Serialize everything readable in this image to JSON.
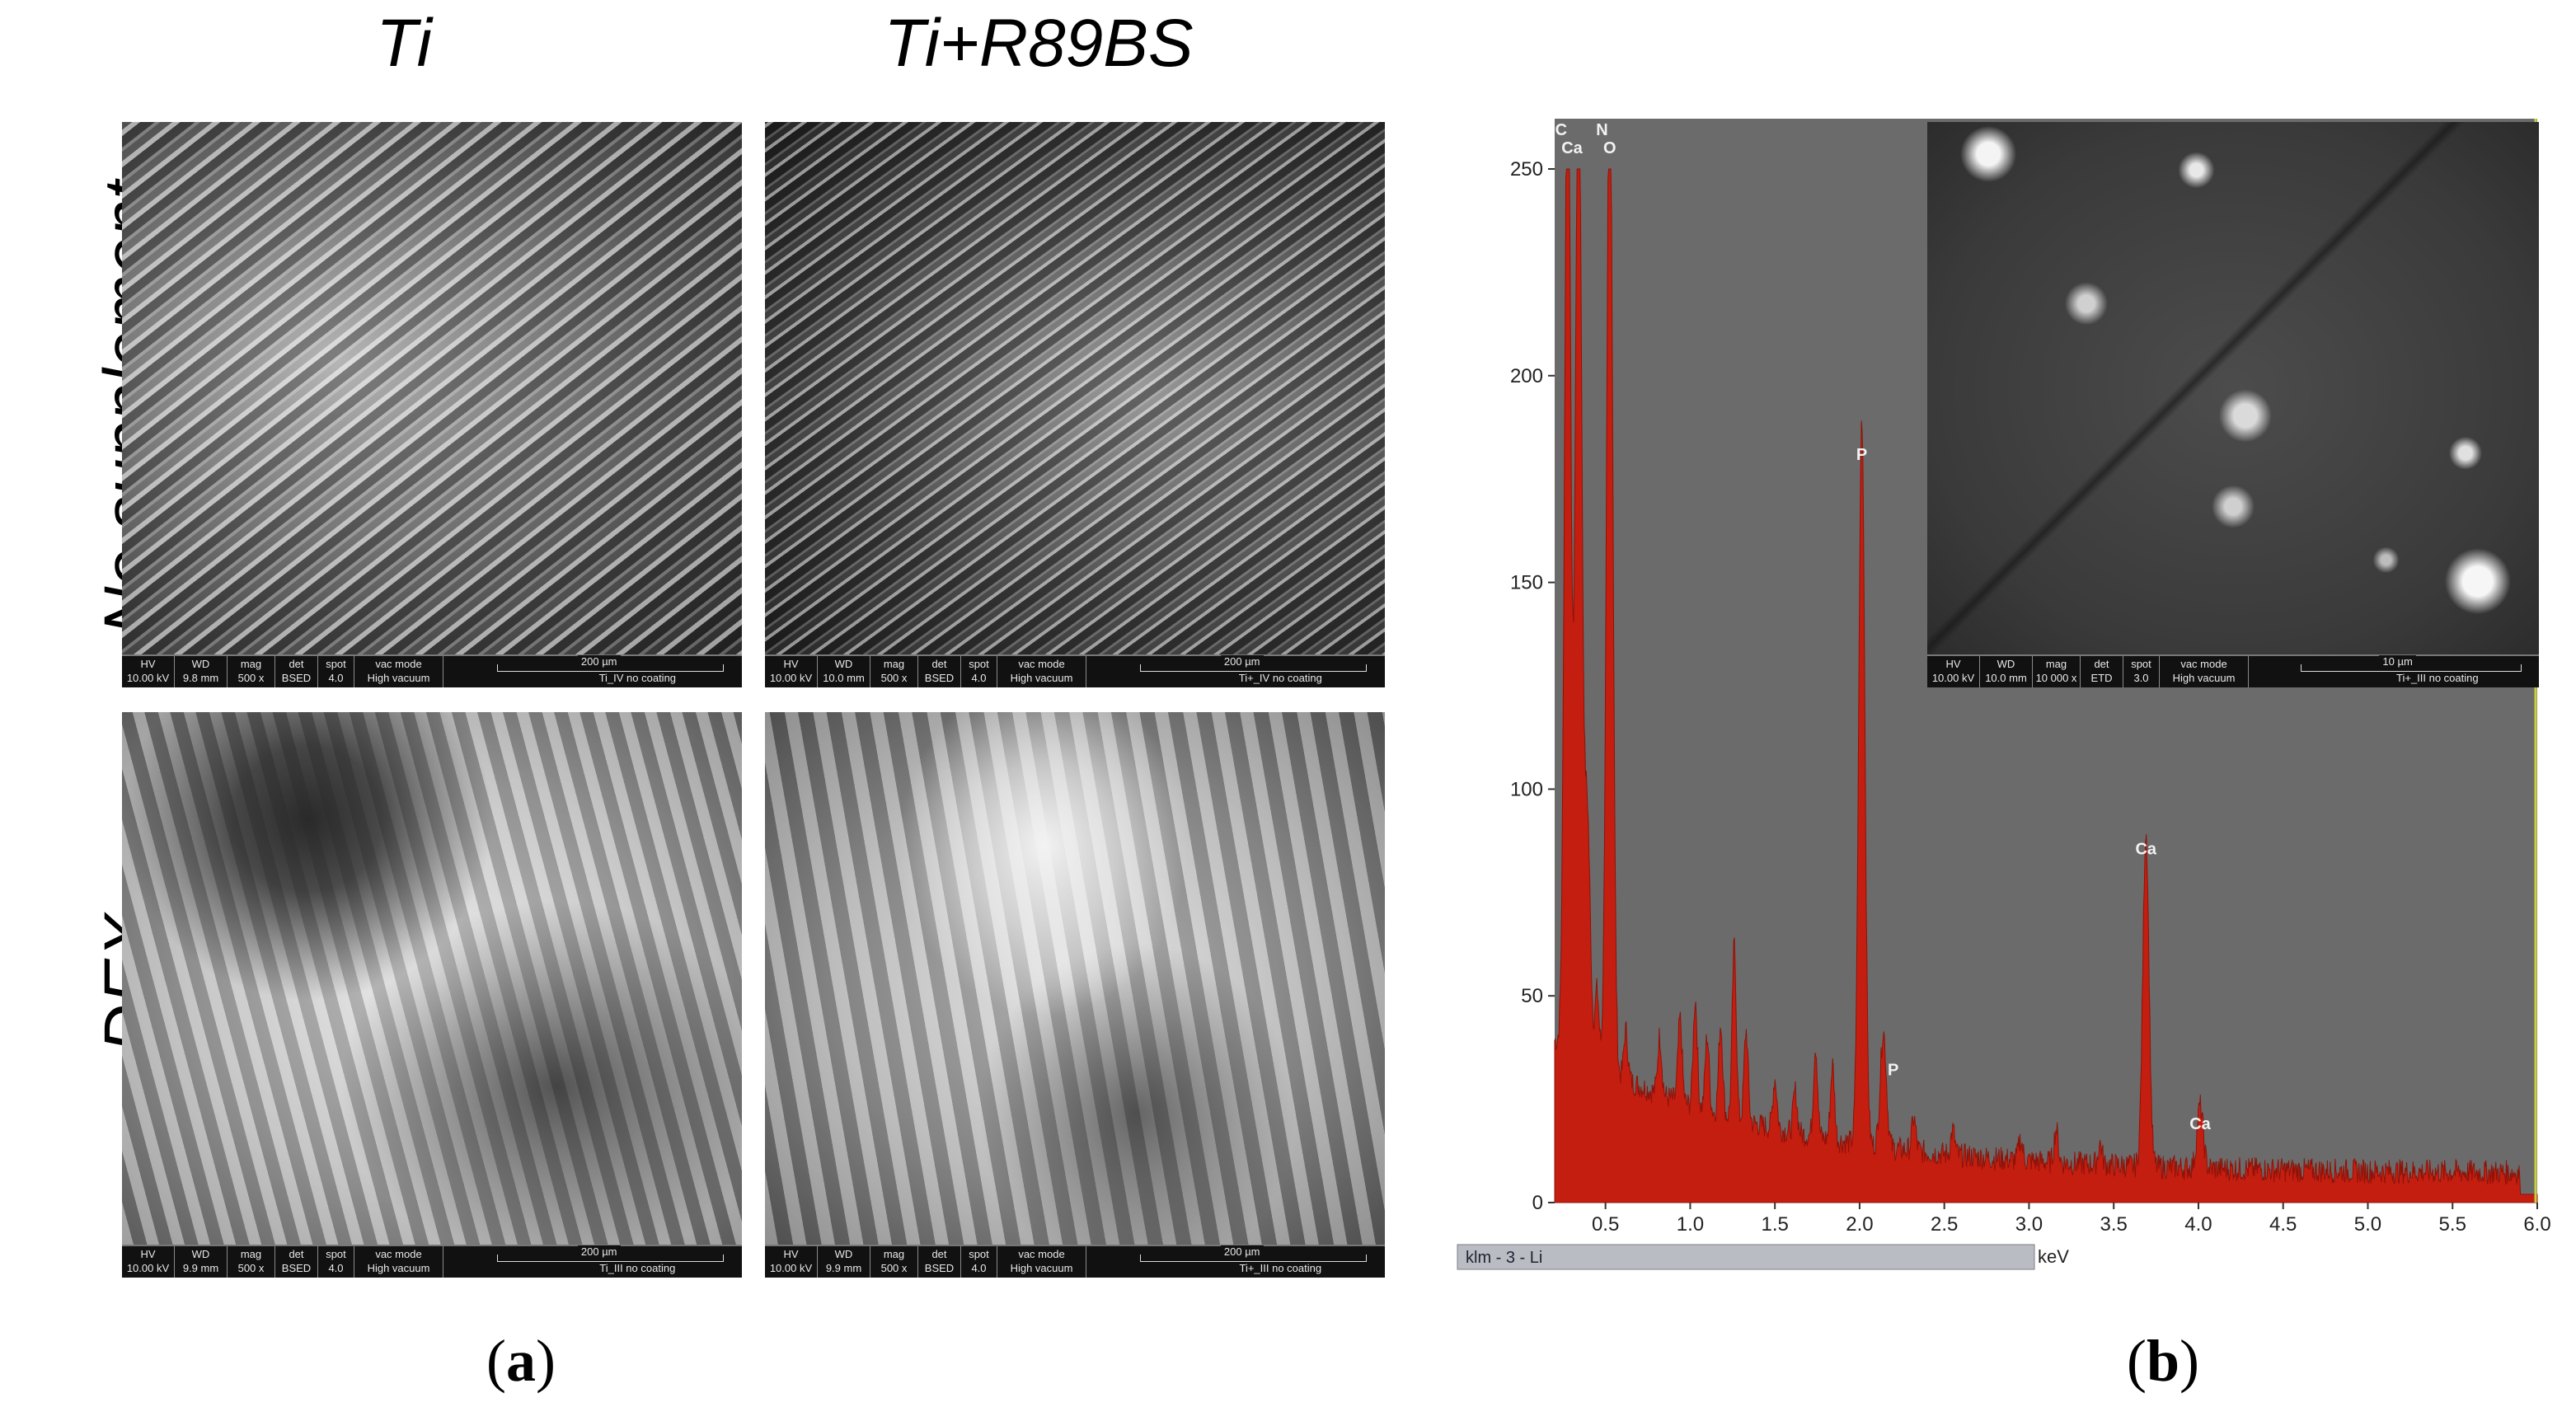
{
  "panel_a": {
    "label": "(a)",
    "label_letter": "a",
    "columns": [
      "Ti",
      "Ti+R89BS"
    ],
    "rows": [
      "No supplement",
      "DEX"
    ],
    "sem_header": [
      "HV",
      "WD",
      "mag",
      "det",
      "spot",
      "vac mode"
    ],
    "images": [
      {
        "values": [
          "10.00 kV",
          "9.8 mm",
          "500 x",
          "BSED",
          "4.0",
          "High vacuum"
        ],
        "scale": "200 µm",
        "caption": "Ti_IV no coating"
      },
      {
        "values": [
          "10.00 kV",
          "10.0 mm",
          "500 x",
          "BSED",
          "4.0",
          "High vacuum"
        ],
        "scale": "200 µm",
        "caption": "Ti+_IV no coating"
      },
      {
        "values": [
          "10.00 kV",
          "9.9 mm",
          "500 x",
          "BSED",
          "4.0",
          "High vacuum"
        ],
        "scale": "200 µm",
        "caption": "Ti_III no coating"
      },
      {
        "values": [
          "10.00 kV",
          "9.9 mm",
          "500 x",
          "BSED",
          "4.0",
          "High vacuum"
        ],
        "scale": "200 µm",
        "caption": "Ti+_III no coating"
      }
    ]
  },
  "panel_b": {
    "label": "(b)",
    "label_letter": "b",
    "inset": {
      "values": [
        "10.00 kV",
        "10.0 mm",
        "10 000 x",
        "ETD",
        "3.0",
        "High vacuum"
      ],
      "scale": "10 µm",
      "caption": "Ti+_III no coating"
    },
    "chart_data": {
      "type": "area",
      "xlabel": "keV",
      "ylabel": "",
      "xlim": [
        0.2,
        6.0
      ],
      "ylim": [
        0,
        250
      ],
      "x_ticks": [
        "0.5",
        "1.0",
        "1.5",
        "2.0",
        "2.5",
        "3.0",
        "3.5",
        "4.0",
        "4.5",
        "5.0",
        "5.5",
        "6.0"
      ],
      "y_ticks": [
        "0",
        "50",
        "100",
        "150",
        "200",
        "250"
      ],
      "status_label": "klm - 3 - Li",
      "colors": {
        "plot_bg": "#6b6b6b",
        "fill": "#c41e10",
        "marker": "#c8d040"
      },
      "peaks": [
        {
          "label": "C",
          "x": 0.277,
          "y": 250
        },
        {
          "label": "N",
          "x": 0.392,
          "y": 60
        },
        {
          "label": "Ca",
          "x": 0.341,
          "y": 250
        },
        {
          "label": "O",
          "x": 0.525,
          "y": 250
        },
        {
          "label": "P",
          "x": 2.013,
          "y": 176
        },
        {
          "label": "P",
          "x": 2.14,
          "y": 28
        },
        {
          "label": "Ca",
          "x": 3.69,
          "y": 81
        },
        {
          "label": "Ca",
          "x": 4.01,
          "y": 15
        }
      ]
    }
  }
}
